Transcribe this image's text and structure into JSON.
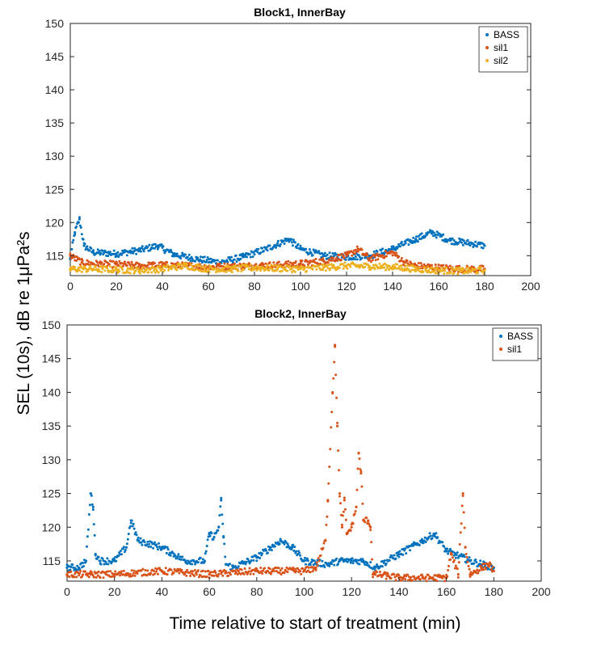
{
  "shared_ylabel": "SEL (10s), dB re 1μPa²s",
  "shared_xlabel": "Time relative to start of treatment (min)",
  "colors": {
    "BASS": "#0072BD",
    "sil1": "#D95319",
    "sil2": "#EDB120",
    "axis": "#262626"
  },
  "chart_data": [
    {
      "type": "scatter",
      "title": "Block1, InnerBay",
      "xlim": [
        0,
        200
      ],
      "ylim": [
        112,
        150
      ],
      "xticks": [
        0,
        20,
        40,
        60,
        80,
        100,
        120,
        140,
        160,
        180,
        200
      ],
      "yticks": [
        115,
        120,
        125,
        130,
        135,
        140,
        145,
        150
      ],
      "legend_position": "top-right",
      "series": [
        {
          "name": "BASS",
          "color": "#0072BD",
          "x": [
            0,
            2,
            4,
            6,
            10,
            20,
            30,
            38,
            45,
            55,
            65,
            75,
            85,
            95,
            100,
            110,
            120,
            130,
            140,
            150,
            157,
            165,
            175,
            180
          ],
          "y": [
            114.5,
            118.5,
            120.5,
            116.5,
            115.5,
            115.3,
            115.8,
            116.5,
            115.2,
            114.5,
            114.0,
            114.8,
            116.0,
            117.5,
            116.0,
            115.0,
            114.8,
            115.0,
            116.0,
            117.5,
            118.5,
            117.3,
            116.8,
            116.5
          ]
        },
        {
          "name": "sil1",
          "color": "#D95319",
          "x": [
            0,
            5,
            10,
            20,
            30,
            40,
            50,
            60,
            70,
            80,
            90,
            100,
            110,
            120,
            125,
            130,
            140,
            145,
            150,
            160,
            170,
            180
          ],
          "y": [
            115.0,
            114.0,
            113.8,
            113.7,
            113.5,
            113.6,
            113.5,
            113.3,
            113.4,
            113.5,
            113.6,
            113.8,
            114.2,
            115.0,
            116.0,
            114.5,
            115.5,
            114.0,
            113.5,
            113.2,
            113.0,
            113.0
          ]
        },
        {
          "name": "sil2",
          "color": "#EDB120",
          "x": [
            0,
            10,
            20,
            30,
            40,
            50,
            60,
            70,
            80,
            90,
            100,
            110,
            120,
            130,
            140,
            150,
            160,
            170,
            180
          ],
          "y": [
            113.0,
            113.0,
            112.9,
            112.8,
            113.0,
            113.5,
            113.0,
            113.0,
            113.2,
            113.1,
            113.0,
            113.2,
            113.5,
            113.4,
            113.3,
            113.0,
            112.8,
            112.7,
            112.8
          ]
        }
      ]
    },
    {
      "type": "scatter",
      "title": "Block2, InnerBay",
      "xlim": [
        0,
        200
      ],
      "ylim": [
        112,
        150
      ],
      "xticks": [
        0,
        20,
        40,
        60,
        80,
        100,
        120,
        140,
        160,
        180,
        200
      ],
      "yticks": [
        115,
        120,
        125,
        130,
        135,
        140,
        145,
        150
      ],
      "legend_position": "top-right",
      "series": [
        {
          "name": "BASS",
          "color": "#0072BD",
          "x": [
            0,
            5,
            8,
            10,
            11,
            12,
            14,
            20,
            25,
            27,
            30,
            40,
            50,
            58,
            60,
            62,
            64,
            65,
            66,
            67,
            70,
            80,
            90,
            95,
            100,
            110,
            115,
            120,
            125,
            130,
            140,
            150,
            155,
            160,
            170,
            180
          ],
          "y": [
            114.0,
            114.0,
            115.0,
            125.0,
            123.0,
            116.0,
            115.0,
            115.0,
            117.0,
            121.0,
            118.0,
            117.0,
            115.0,
            115.0,
            119.0,
            118.5,
            120.0,
            124.0,
            118.5,
            114.5,
            114.0,
            115.5,
            118.0,
            117.0,
            115.0,
            114.5,
            115.0,
            115.0,
            115.0,
            114.0,
            116.0,
            118.0,
            119.0,
            116.5,
            115.0,
            114.0
          ]
        },
        {
          "name": "sil1",
          "color": "#D95319",
          "x": [
            0,
            10,
            20,
            40,
            60,
            80,
            100,
            105,
            109,
            110,
            112,
            113,
            114,
            115,
            116,
            117,
            118,
            120,
            122,
            123,
            124,
            125,
            127,
            128,
            129,
            130,
            135,
            140,
            150,
            160,
            162,
            165,
            167,
            168,
            170,
            175,
            178,
            180
          ],
          "y": [
            113.0,
            113.0,
            113.0,
            113.5,
            113.0,
            113.5,
            113.5,
            114.0,
            118.0,
            124.0,
            140.0,
            147.0,
            135.0,
            125.0,
            120.0,
            124.0,
            119.0,
            120.0,
            123.0,
            131.0,
            128.0,
            121.0,
            121.0,
            120.0,
            113.0,
            113.0,
            112.8,
            112.5,
            112.5,
            112.5,
            116.0,
            113.0,
            125.0,
            117.0,
            113.0,
            114.0,
            114.5,
            113.5
          ]
        }
      ]
    }
  ]
}
